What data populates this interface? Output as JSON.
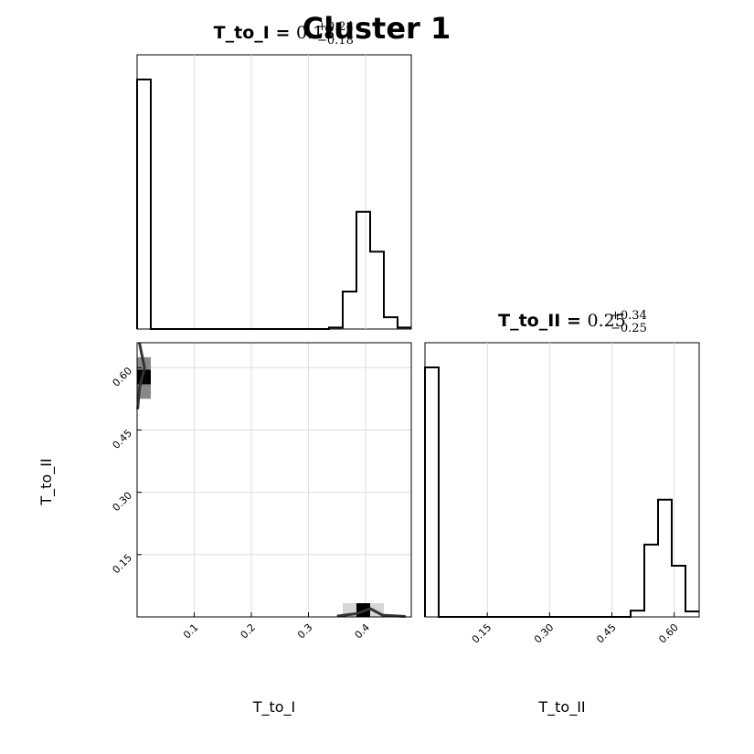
{
  "figure_title": "Cluster 1",
  "colors": {
    "line": "#000000",
    "grid": "#dddddd",
    "frame": "#000000"
  },
  "chart_data": [
    {
      "type": "histogram",
      "panel": "top-left",
      "title": {
        "param": "T_to_I = ",
        "value": "0.18",
        "upper": "+0.24",
        "lower": "−0.18"
      },
      "xlim": [
        0,
        0.48
      ],
      "grid": true,
      "bins": [
        {
          "x0": 0.0,
          "x1": 0.024,
          "count": 1.0
        },
        {
          "x0": 0.024,
          "x1": 0.336,
          "count": 0.0
        },
        {
          "x0": 0.336,
          "x1": 0.36,
          "count": 0.006
        },
        {
          "x0": 0.36,
          "x1": 0.384,
          "count": 0.15
        },
        {
          "x0": 0.384,
          "x1": 0.408,
          "count": 0.47
        },
        {
          "x0": 0.408,
          "x1": 0.432,
          "count": 0.31
        },
        {
          "x0": 0.432,
          "x1": 0.456,
          "count": 0.047
        },
        {
          "x0": 0.456,
          "x1": 0.48,
          "count": 0.006
        }
      ]
    },
    {
      "type": "histogram",
      "panel": "bottom-right",
      "title": {
        "param": "T_to_II = ",
        "value": "0.25",
        "upper": "+0.34",
        "lower": "−0.25"
      },
      "xlabel": "T_to_II",
      "xlim": [
        0,
        0.66
      ],
      "xticks": [
        {
          "value": 0.15,
          "label": "0.15"
        },
        {
          "value": 0.3,
          "label": "0.30"
        },
        {
          "value": 0.45,
          "label": "0.45"
        },
        {
          "value": 0.6,
          "label": "0.60"
        }
      ],
      "grid": true,
      "bins": [
        {
          "x0": 0.0,
          "x1": 0.033,
          "count": 1.0
        },
        {
          "x0": 0.033,
          "x1": 0.495,
          "count": 0.0
        },
        {
          "x0": 0.495,
          "x1": 0.528,
          "count": 0.025
        },
        {
          "x0": 0.528,
          "x1": 0.561,
          "count": 0.29
        },
        {
          "x0": 0.561,
          "x1": 0.594,
          "count": 0.47
        },
        {
          "x0": 0.594,
          "x1": 0.627,
          "count": 0.205
        },
        {
          "x0": 0.627,
          "x1": 0.66,
          "count": 0.022
        }
      ]
    },
    {
      "type": "heatmap",
      "panel": "bottom-left",
      "xlabel": "T_to_I",
      "ylabel": "T_to_II",
      "xlim": [
        0,
        0.48
      ],
      "ylim": [
        0,
        0.66
      ],
      "xticks": [
        {
          "value": 0.1,
          "label": "0.1"
        },
        {
          "value": 0.2,
          "label": "0.2"
        },
        {
          "value": 0.3,
          "label": "0.3"
        },
        {
          "value": 0.4,
          "label": "0.4"
        }
      ],
      "yticks": [
        {
          "value": 0.15,
          "label": "0.15"
        },
        {
          "value": 0.3,
          "label": "0.30"
        },
        {
          "value": 0.45,
          "label": "0.45"
        },
        {
          "value": 0.6,
          "label": "0.60"
        }
      ],
      "grid": true,
      "density_cells": [
        {
          "x0": 0.0,
          "x1": 0.024,
          "y0": 0.525,
          "y1": 0.625,
          "weight": 0.45
        },
        {
          "x0": 0.0,
          "x1": 0.024,
          "y0": 0.56,
          "y1": 0.595,
          "weight": 1.0
        },
        {
          "x0": 0.36,
          "x1": 0.432,
          "y0": 0.0,
          "y1": 0.033,
          "weight": 0.2
        },
        {
          "x0": 0.384,
          "x1": 0.408,
          "y0": 0.0,
          "y1": 0.033,
          "weight": 1.0
        }
      ]
    }
  ]
}
